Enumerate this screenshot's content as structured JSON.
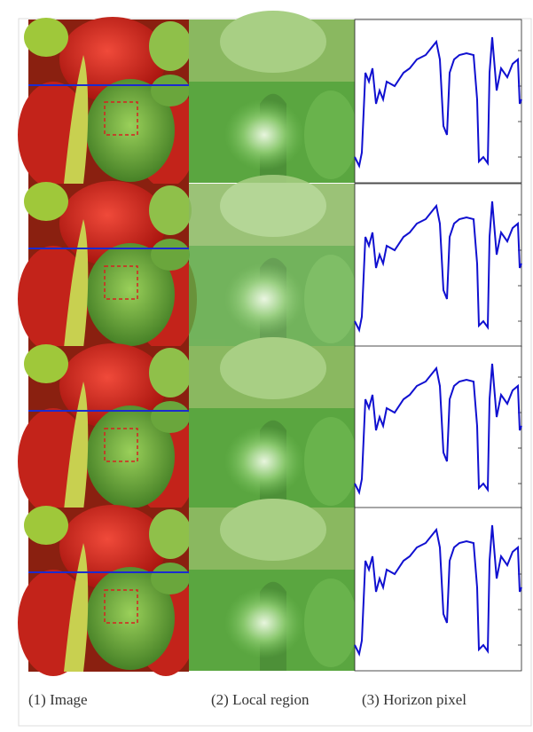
{
  "captions": [
    "(1) Image",
    "(2) Local region",
    "(3) Horizon pixel"
  ]
}
